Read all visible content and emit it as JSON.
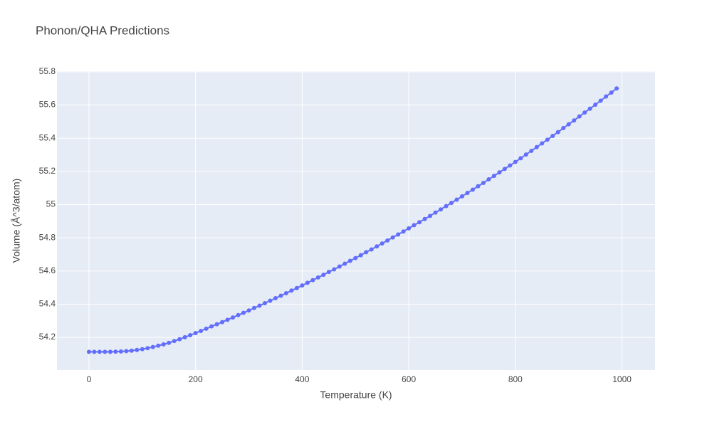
{
  "chart_data": {
    "type": "line",
    "title": "Phonon/QHA Predictions",
    "xlabel": "Temperature (K)",
    "ylabel": "Volume (Å^3/atom)",
    "x": [
      0,
      10,
      20,
      30,
      40,
      50,
      60,
      70,
      80,
      90,
      100,
      110,
      120,
      130,
      140,
      150,
      160,
      170,
      180,
      190,
      200,
      210,
      220,
      230,
      240,
      250,
      260,
      270,
      280,
      290,
      300,
      310,
      320,
      330,
      340,
      350,
      360,
      370,
      380,
      390,
      400,
      410,
      420,
      430,
      440,
      450,
      460,
      470,
      480,
      490,
      500,
      510,
      520,
      530,
      540,
      550,
      560,
      570,
      580,
      590,
      600,
      610,
      620,
      630,
      640,
      650,
      660,
      670,
      680,
      690,
      700,
      710,
      720,
      730,
      740,
      750,
      760,
      770,
      780,
      790,
      800,
      810,
      820,
      830,
      840,
      850,
      860,
      870,
      880,
      890,
      900,
      910,
      920,
      930,
      940,
      950,
      960,
      970,
      980,
      990
    ],
    "series": [
      {
        "name": "Volume",
        "color": "#636efa",
        "values": [
          54.113,
          54.113,
          54.113,
          54.113,
          54.113,
          54.114,
          54.115,
          54.117,
          54.12,
          54.124,
          54.129,
          54.135,
          54.142,
          54.15,
          54.158,
          54.167,
          54.178,
          54.189,
          54.201,
          54.213,
          54.226,
          54.239,
          54.252,
          54.266,
          54.279,
          54.292,
          54.306,
          54.32,
          54.334,
          54.348,
          54.362,
          54.377,
          54.391,
          54.406,
          54.421,
          54.436,
          54.451,
          54.466,
          54.482,
          54.497,
          54.513,
          54.529,
          54.545,
          54.561,
          54.577,
          54.594,
          54.61,
          54.627,
          54.644,
          54.661,
          54.678,
          54.695,
          54.713,
          54.73,
          54.748,
          54.766,
          54.784,
          54.802,
          54.82,
          54.838,
          54.857,
          54.876,
          54.894,
          54.913,
          54.932,
          54.952,
          54.971,
          54.991,
          55.01,
          55.03,
          55.05,
          55.07,
          55.09,
          55.111,
          55.131,
          55.152,
          55.173,
          55.194,
          55.215,
          55.236,
          55.257,
          55.279,
          55.302,
          55.324,
          55.346,
          55.369,
          55.391,
          55.414,
          55.437,
          55.461,
          55.484,
          55.507,
          55.531,
          55.555,
          55.578,
          55.602,
          55.626,
          55.651,
          55.675,
          55.7
        ]
      }
    ],
    "xlim": [
      -60,
      1062
    ],
    "ylim": [
      54.003,
      55.804
    ],
    "xticks": [
      0,
      200,
      400,
      600,
      800,
      1000
    ],
    "yticks": [
      54.2,
      54.4,
      54.6,
      54.8,
      55,
      55.2,
      55.4,
      55.6,
      55.8
    ],
    "grid": true,
    "plot_background": "#e5ecf6"
  }
}
